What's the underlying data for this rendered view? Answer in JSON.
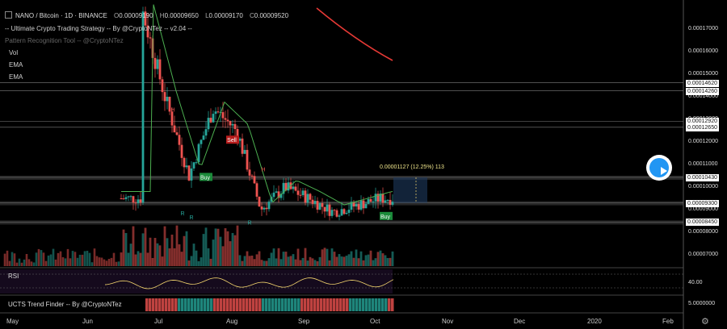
{
  "header": {
    "symbol": "NANO / Bitcoin · 1D · BINANCE",
    "o_label": "O",
    "o_value": "0.00009190",
    "h_label": "H",
    "h_value": "0.00009650",
    "l_label": "L",
    "l_value": "0.00009170",
    "c_label": "C",
    "c_value": "0.00009520"
  },
  "studies": {
    "strategy": "-- Ultimate Crypto Trading Strategy -- By @CryptoNTez -- v2.04 --",
    "pattern": "Pattern Recognition Tool -- @CryptoNTez",
    "vol": "Vol",
    "ema1": "EMA",
    "ema2": "EMA"
  },
  "panes": {
    "rsi": "RSI",
    "ucts": "UCTS Trend Finder -- By @CryptoNTez",
    "rsi_value": "40.00",
    "ucts_value": "5.0000000"
  },
  "measure_label": "0.00001127 (12.25%) 113",
  "price_axis": {
    "ticks": [
      {
        "label": "0.00017000",
        "v": 0.00017
      },
      {
        "label": "0.00016000",
        "v": 0.00016
      },
      {
        "label": "0.00015000",
        "v": 0.00015
      },
      {
        "label": "0.00014000",
        "v": 0.00014
      },
      {
        "label": "0.00013000",
        "v": 0.00013
      },
      {
        "label": "0.00012000",
        "v": 0.00012
      },
      {
        "label": "0.00011000",
        "v": 0.00011
      },
      {
        "label": "0.00010000",
        "v": 0.0001
      },
      {
        "label": "0.00009000",
        "v": 9e-05
      },
      {
        "label": "0.00008000",
        "v": 8e-05
      },
      {
        "label": "0.00007000",
        "v": 7e-05
      }
    ],
    "boxes": [
      {
        "label": "0.00014620",
        "v": 0.0001462
      },
      {
        "label": "0.00014260",
        "v": 0.0001426
      },
      {
        "label": "0.00012920",
        "v": 0.0001292
      },
      {
        "label": "0.00012650",
        "v": 0.0001265
      },
      {
        "label": "0.00010430",
        "v": 0.0001043
      },
      {
        "label": "0.00009300",
        "v": 9.3e-05
      },
      {
        "label": "0.00008450",
        "v": 8.45e-05
      }
    ]
  },
  "time_axis": {
    "labels": [
      "May",
      "Jun",
      "Jul",
      "Aug",
      "Sep",
      "Oct",
      "Nov",
      "Dec",
      "2020",
      "Feb"
    ]
  },
  "markers": {
    "h": "H",
    "r": "R",
    "sell": "Sell",
    "buy": "Buy"
  },
  "colors": {
    "up": "#26a69a",
    "down": "#ef5350",
    "ema_fast": "#4caf50",
    "ema_slow": "#e53935",
    "rsi": "#f5d76e",
    "level": "#9e9e9e",
    "buy": "#1b8a3a",
    "sell": "#b71c1c"
  },
  "chart_data": {
    "type": "candlestick",
    "symbol": "NANO / Bitcoin",
    "timeframe": "1D",
    "exchange": "BINANCE",
    "ylim": [
      6.5e-05,
      0.00018
    ],
    "x_range": [
      "May",
      "Feb"
    ],
    "price_path": [
      {
        "x": "late Jun",
        "close": 0.00018
      },
      {
        "x": "early Jul",
        "close": 0.00014
      },
      {
        "x": "mid Jul",
        "close": 0.000105
      },
      {
        "x": "late Jul",
        "close": 0.000135
      },
      {
        "x": "early Aug",
        "close": 0.000125
      },
      {
        "x": "mid Aug",
        "close": 9e-05
      },
      {
        "x": "late Aug",
        "close": 0.0001
      },
      {
        "x": "early Sep",
        "close": 9.5e-05
      },
      {
        "x": "mid Sep",
        "close": 8.9e-05
      },
      {
        "x": "late Sep",
        "close": 9.2e-05
      },
      {
        "x": "early Oct",
        "close": 9.5e-05
      }
    ],
    "horizontal_levels": [
      0.0001462,
      0.0001426,
      0.0001292,
      0.0001265,
      0.0001043,
      9.3e-05,
      8.45e-05
    ],
    "last_ohlc": {
      "open": 9.19e-05,
      "high": 9.65e-05,
      "low": 9.17e-05,
      "close": 9.52e-05
    },
    "measure": {
      "change": 1.127e-05,
      "percent": 12.25,
      "bars": 113
    }
  }
}
